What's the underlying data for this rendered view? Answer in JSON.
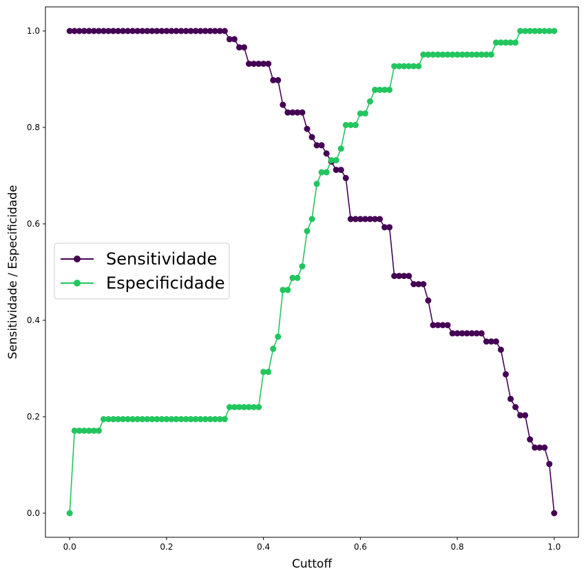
{
  "chart_data": {
    "type": "line",
    "title": "",
    "xlabel": "Cuttoff",
    "ylabel": "Sensitividade / Especificidade",
    "xlim": [
      -0.05,
      1.05
    ],
    "ylim": [
      -0.05,
      1.05
    ],
    "xticks": [
      "0.0",
      "0.2",
      "0.4",
      "0.6",
      "0.8",
      "1.0"
    ],
    "yticks": [
      "0.0",
      "0.2",
      "0.4",
      "0.6",
      "0.8",
      "1.0"
    ],
    "grid": false,
    "legend_position": "center-left",
    "x": [
      0.0,
      0.01,
      0.02,
      0.03,
      0.04,
      0.05,
      0.06,
      0.07,
      0.08,
      0.09,
      0.1,
      0.11,
      0.12,
      0.13,
      0.14,
      0.15,
      0.16,
      0.17,
      0.18,
      0.19,
      0.2,
      0.21,
      0.22,
      0.23,
      0.24,
      0.25,
      0.26,
      0.27,
      0.28,
      0.29,
      0.3,
      0.31,
      0.32,
      0.33,
      0.34,
      0.35,
      0.36,
      0.37,
      0.38,
      0.39,
      0.4,
      0.41,
      0.42,
      0.43,
      0.44,
      0.45,
      0.46,
      0.47,
      0.48,
      0.49,
      0.5,
      0.51,
      0.52,
      0.53,
      0.54,
      0.55,
      0.56,
      0.57,
      0.58,
      0.59,
      0.6,
      0.61,
      0.62,
      0.63,
      0.64,
      0.65,
      0.66,
      0.67,
      0.68,
      0.69,
      0.7,
      0.71,
      0.72,
      0.73,
      0.74,
      0.75,
      0.76,
      0.77,
      0.78,
      0.79,
      0.8,
      0.81,
      0.82,
      0.83,
      0.84,
      0.85,
      0.86,
      0.87,
      0.88,
      0.89,
      0.9,
      0.91,
      0.92,
      0.93,
      0.94,
      0.95,
      0.96,
      0.97,
      0.98,
      0.99,
      1.0
    ],
    "series": [
      {
        "name": "Sensitividade",
        "color": "#440154",
        "values": [
          1.0,
          1.0,
          1.0,
          1.0,
          1.0,
          1.0,
          1.0,
          1.0,
          1.0,
          1.0,
          1.0,
          1.0,
          1.0,
          1.0,
          1.0,
          1.0,
          1.0,
          1.0,
          1.0,
          1.0,
          1.0,
          1.0,
          1.0,
          1.0,
          1.0,
          1.0,
          1.0,
          1.0,
          1.0,
          1.0,
          1.0,
          1.0,
          1.0,
          0.983,
          0.983,
          0.966,
          0.966,
          0.932,
          0.932,
          0.932,
          0.932,
          0.932,
          0.898,
          0.898,
          0.847,
          0.831,
          0.831,
          0.831,
          0.831,
          0.797,
          0.78,
          0.763,
          0.763,
          0.746,
          0.729,
          0.712,
          0.712,
          0.695,
          0.61,
          0.61,
          0.61,
          0.61,
          0.61,
          0.61,
          0.61,
          0.593,
          0.593,
          0.492,
          0.492,
          0.492,
          0.492,
          0.475,
          0.475,
          0.475,
          0.441,
          0.39,
          0.39,
          0.39,
          0.39,
          0.373,
          0.373,
          0.373,
          0.373,
          0.373,
          0.373,
          0.373,
          0.356,
          0.356,
          0.356,
          0.339,
          0.288,
          0.237,
          0.22,
          0.203,
          0.203,
          0.153,
          0.136,
          0.136,
          0.136,
          0.102,
          0.0
        ]
      },
      {
        "name": "Especificidade",
        "color": "#22c55e",
        "values": [
          0.0,
          0.171,
          0.171,
          0.171,
          0.171,
          0.171,
          0.171,
          0.195,
          0.195,
          0.195,
          0.195,
          0.195,
          0.195,
          0.195,
          0.195,
          0.195,
          0.195,
          0.195,
          0.195,
          0.195,
          0.195,
          0.195,
          0.195,
          0.195,
          0.195,
          0.195,
          0.195,
          0.195,
          0.195,
          0.195,
          0.195,
          0.195,
          0.195,
          0.22,
          0.22,
          0.22,
          0.22,
          0.22,
          0.22,
          0.22,
          0.293,
          0.293,
          0.341,
          0.366,
          0.463,
          0.463,
          0.488,
          0.488,
          0.512,
          0.585,
          0.61,
          0.683,
          0.707,
          0.707,
          0.732,
          0.732,
          0.756,
          0.805,
          0.805,
          0.805,
          0.829,
          0.829,
          0.854,
          0.878,
          0.878,
          0.878,
          0.878,
          0.927,
          0.927,
          0.927,
          0.927,
          0.927,
          0.927,
          0.951,
          0.951,
          0.951,
          0.951,
          0.951,
          0.951,
          0.951,
          0.951,
          0.951,
          0.951,
          0.951,
          0.951,
          0.951,
          0.951,
          0.951,
          0.976,
          0.976,
          0.976,
          0.976,
          0.976,
          1.0,
          1.0,
          1.0,
          1.0,
          1.0,
          1.0,
          1.0,
          1.0
        ]
      }
    ]
  }
}
